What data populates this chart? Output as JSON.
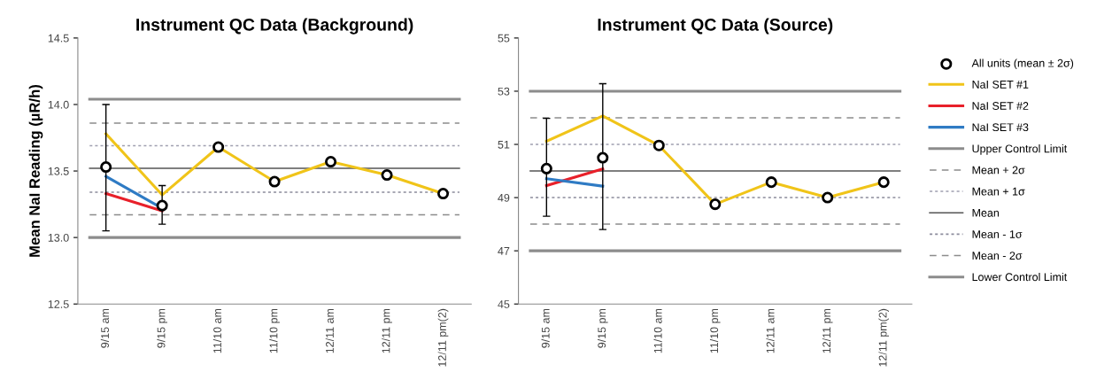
{
  "chart_data": [
    {
      "type": "line",
      "title": "Instrument QC Data (Background)",
      "ylabel": "Mean NaI Reading (µR/h)",
      "categories": [
        "9/15 am",
        "9/15 pm",
        "11/10 am",
        "11/10 pm",
        "12/11 am",
        "12/11 pm",
        "12/11 pm(2)"
      ],
      "ylim": [
        12.5,
        14.5
      ],
      "yticks": [
        {
          "value": 12.5,
          "label": "12.5"
        },
        {
          "value": 13.0,
          "label": "13.0"
        },
        {
          "value": 13.5,
          "label": "13.5"
        },
        {
          "value": 14.0,
          "label": "14.0"
        },
        {
          "value": 14.5,
          "label": "14.5"
        }
      ],
      "grid": false,
      "series": [
        {
          "type": "scatter",
          "marker": "circle",
          "color": "#000000",
          "values": [
            13.53,
            13.24,
            13.68,
            13.42,
            13.57,
            13.47,
            13.33
          ],
          "errors": [
            [
              13.05,
              14.0
            ],
            [
              13.1,
              13.39
            ],
            null,
            null,
            null,
            null,
            null
          ]
        },
        {
          "color": "#f0c419",
          "values": [
            13.78,
            13.32,
            13.68,
            13.42,
            13.57,
            13.47,
            13.33
          ]
        },
        {
          "color": "#e8202a",
          "values": [
            13.33,
            13.2,
            null,
            null,
            null,
            null,
            null
          ]
        },
        {
          "color": "#2f7bc4",
          "values": [
            13.46,
            13.22,
            null,
            null,
            null,
            null,
            null
          ]
        }
      ],
      "ref_lines": [
        {
          "axis": "y",
          "value": 14.04,
          "color": "#8c8c8c",
          "line_style": "solid"
        },
        {
          "axis": "y",
          "value": 13.86,
          "color": "#8c8c8c",
          "line_style": "dashed"
        },
        {
          "axis": "y",
          "value": 13.69,
          "color": "#a0a0b0",
          "line_style": "dotted"
        },
        {
          "axis": "y",
          "value": 13.52,
          "color": "#555555",
          "line_style": "solid"
        },
        {
          "axis": "y",
          "value": 13.34,
          "color": "#8c8c9c",
          "line_style": "dotted"
        },
        {
          "axis": "y",
          "value": 13.17,
          "color": "#8c8c8c",
          "line_style": "dashed"
        },
        {
          "axis": "y",
          "value": 13.0,
          "color": "#8c8c8c",
          "line_style": "solid"
        }
      ]
    },
    {
      "type": "line",
      "title": "Instrument QC Data (Source)",
      "categories": [
        "9/15 am",
        "9/15 pm",
        "11/10 am",
        "11/10 pm",
        "12/11 am",
        "12/11 pm",
        "12/11 pm(2)"
      ],
      "ylim": [
        45,
        55
      ],
      "yticks": [
        45,
        47,
        49,
        51,
        53,
        55
      ],
      "grid": false,
      "legend": "right",
      "series": [
        {
          "name": "All units (mean ± 2σ)",
          "type": "scatter",
          "marker": "circle",
          "color": "#000000",
          "values": [
            50.09,
            50.5,
            50.96,
            48.75,
            49.58,
            49.0,
            49.58
          ],
          "errors": [
            [
              48.3,
              51.98
            ],
            [
              47.8,
              53.28
            ],
            null,
            null,
            null,
            null,
            null
          ]
        },
        {
          "name": "NaI SET #1",
          "color": "#f0c419",
          "values": [
            51.12,
            52.07,
            50.96,
            48.75,
            49.58,
            49.0,
            49.58
          ]
        },
        {
          "name": "NaI SET #2",
          "color": "#e8202a",
          "values": [
            49.45,
            50.08,
            null,
            null,
            null,
            null,
            null
          ]
        },
        {
          "name": "NaI SET #3",
          "color": "#2f7bc4",
          "values": [
            49.71,
            49.43,
            null,
            null,
            null,
            null,
            null
          ]
        }
      ],
      "ref_lines": [
        {
          "axis": "y",
          "value": 53,
          "label": "Upper Control Limit",
          "color": "#8c8c8c",
          "line_style": "solid"
        },
        {
          "axis": "y",
          "value": 52,
          "label": "Mean + 2σ",
          "color": "#8c8c8c",
          "line_style": "dashed"
        },
        {
          "axis": "y",
          "value": 51,
          "label": "Mean + 1σ",
          "color": "#a0a0b0",
          "line_style": "dotted"
        },
        {
          "axis": "y",
          "value": 50,
          "label": "Mean",
          "color": "#555555",
          "line_style": "solid"
        },
        {
          "axis": "y",
          "value": 49,
          "label": "Mean - 1σ",
          "color": "#8c8c9c",
          "line_style": "dotted"
        },
        {
          "axis": "y",
          "value": 48,
          "label": "Mean - 2σ",
          "color": "#8c8c8c",
          "line_style": "dashed"
        },
        {
          "axis": "y",
          "value": 47,
          "label": "Lower Control Limit",
          "color": "#8c8c8c",
          "line_style": "solid"
        }
      ]
    }
  ]
}
